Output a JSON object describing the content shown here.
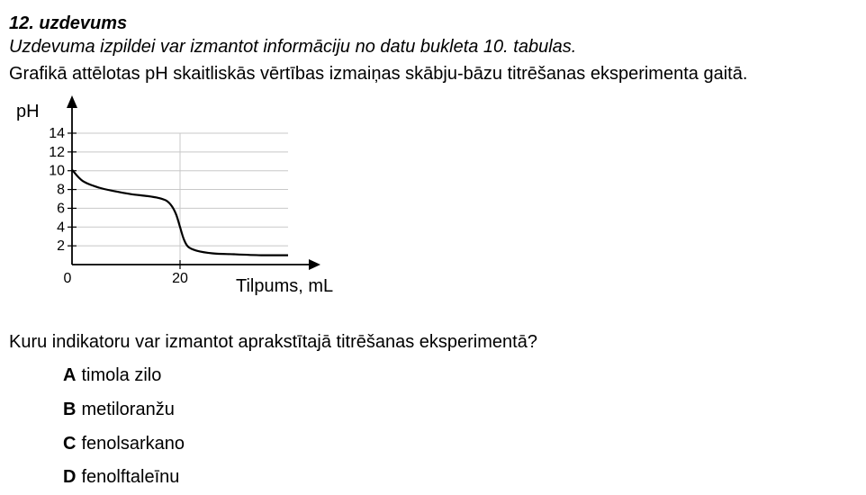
{
  "task": {
    "title": "12. uzdevums",
    "note": "Uzdevuma izpildei var izmantot informāciju no datu bukleta 10. tabulas.",
    "description": "Grafikā attēlotas pH skaitliskās vērtības izmaiņas skābju-bāzu titrēšanas eksperimenta gaitā."
  },
  "chart_data": {
    "type": "line",
    "ylabel": "pH",
    "xlabel": "Tilpums, mL",
    "xlim": [
      0,
      40
    ],
    "ylim": [
      0,
      15
    ],
    "y_ticks": [
      2,
      4,
      6,
      8,
      10,
      12,
      14
    ],
    "x_ticks": [
      0,
      20
    ],
    "grid": true,
    "series": [
      {
        "x": [
          0,
          2,
          5,
          8,
          11,
          14,
          16,
          17.5,
          18.5,
          19.3,
          20,
          20.7,
          21.5,
          23,
          26,
          30,
          35,
          40
        ],
        "y": [
          10.1,
          8.9,
          8.2,
          7.8,
          7.5,
          7.3,
          7.1,
          6.8,
          6.2,
          5.3,
          4.0,
          2.7,
          1.9,
          1.5,
          1.2,
          1.1,
          1.0,
          1.0
        ]
      }
    ]
  },
  "question": "Kuru indikatoru var izmantot aprakstītajā titrēšanas eksperimentā?",
  "options": [
    {
      "letter": "A",
      "text": "timola zilo"
    },
    {
      "letter": "B",
      "text": "metiloranžu"
    },
    {
      "letter": "C",
      "text": "fenolsarkano"
    },
    {
      "letter": "D",
      "text": "fenolftaleīnu"
    }
  ]
}
